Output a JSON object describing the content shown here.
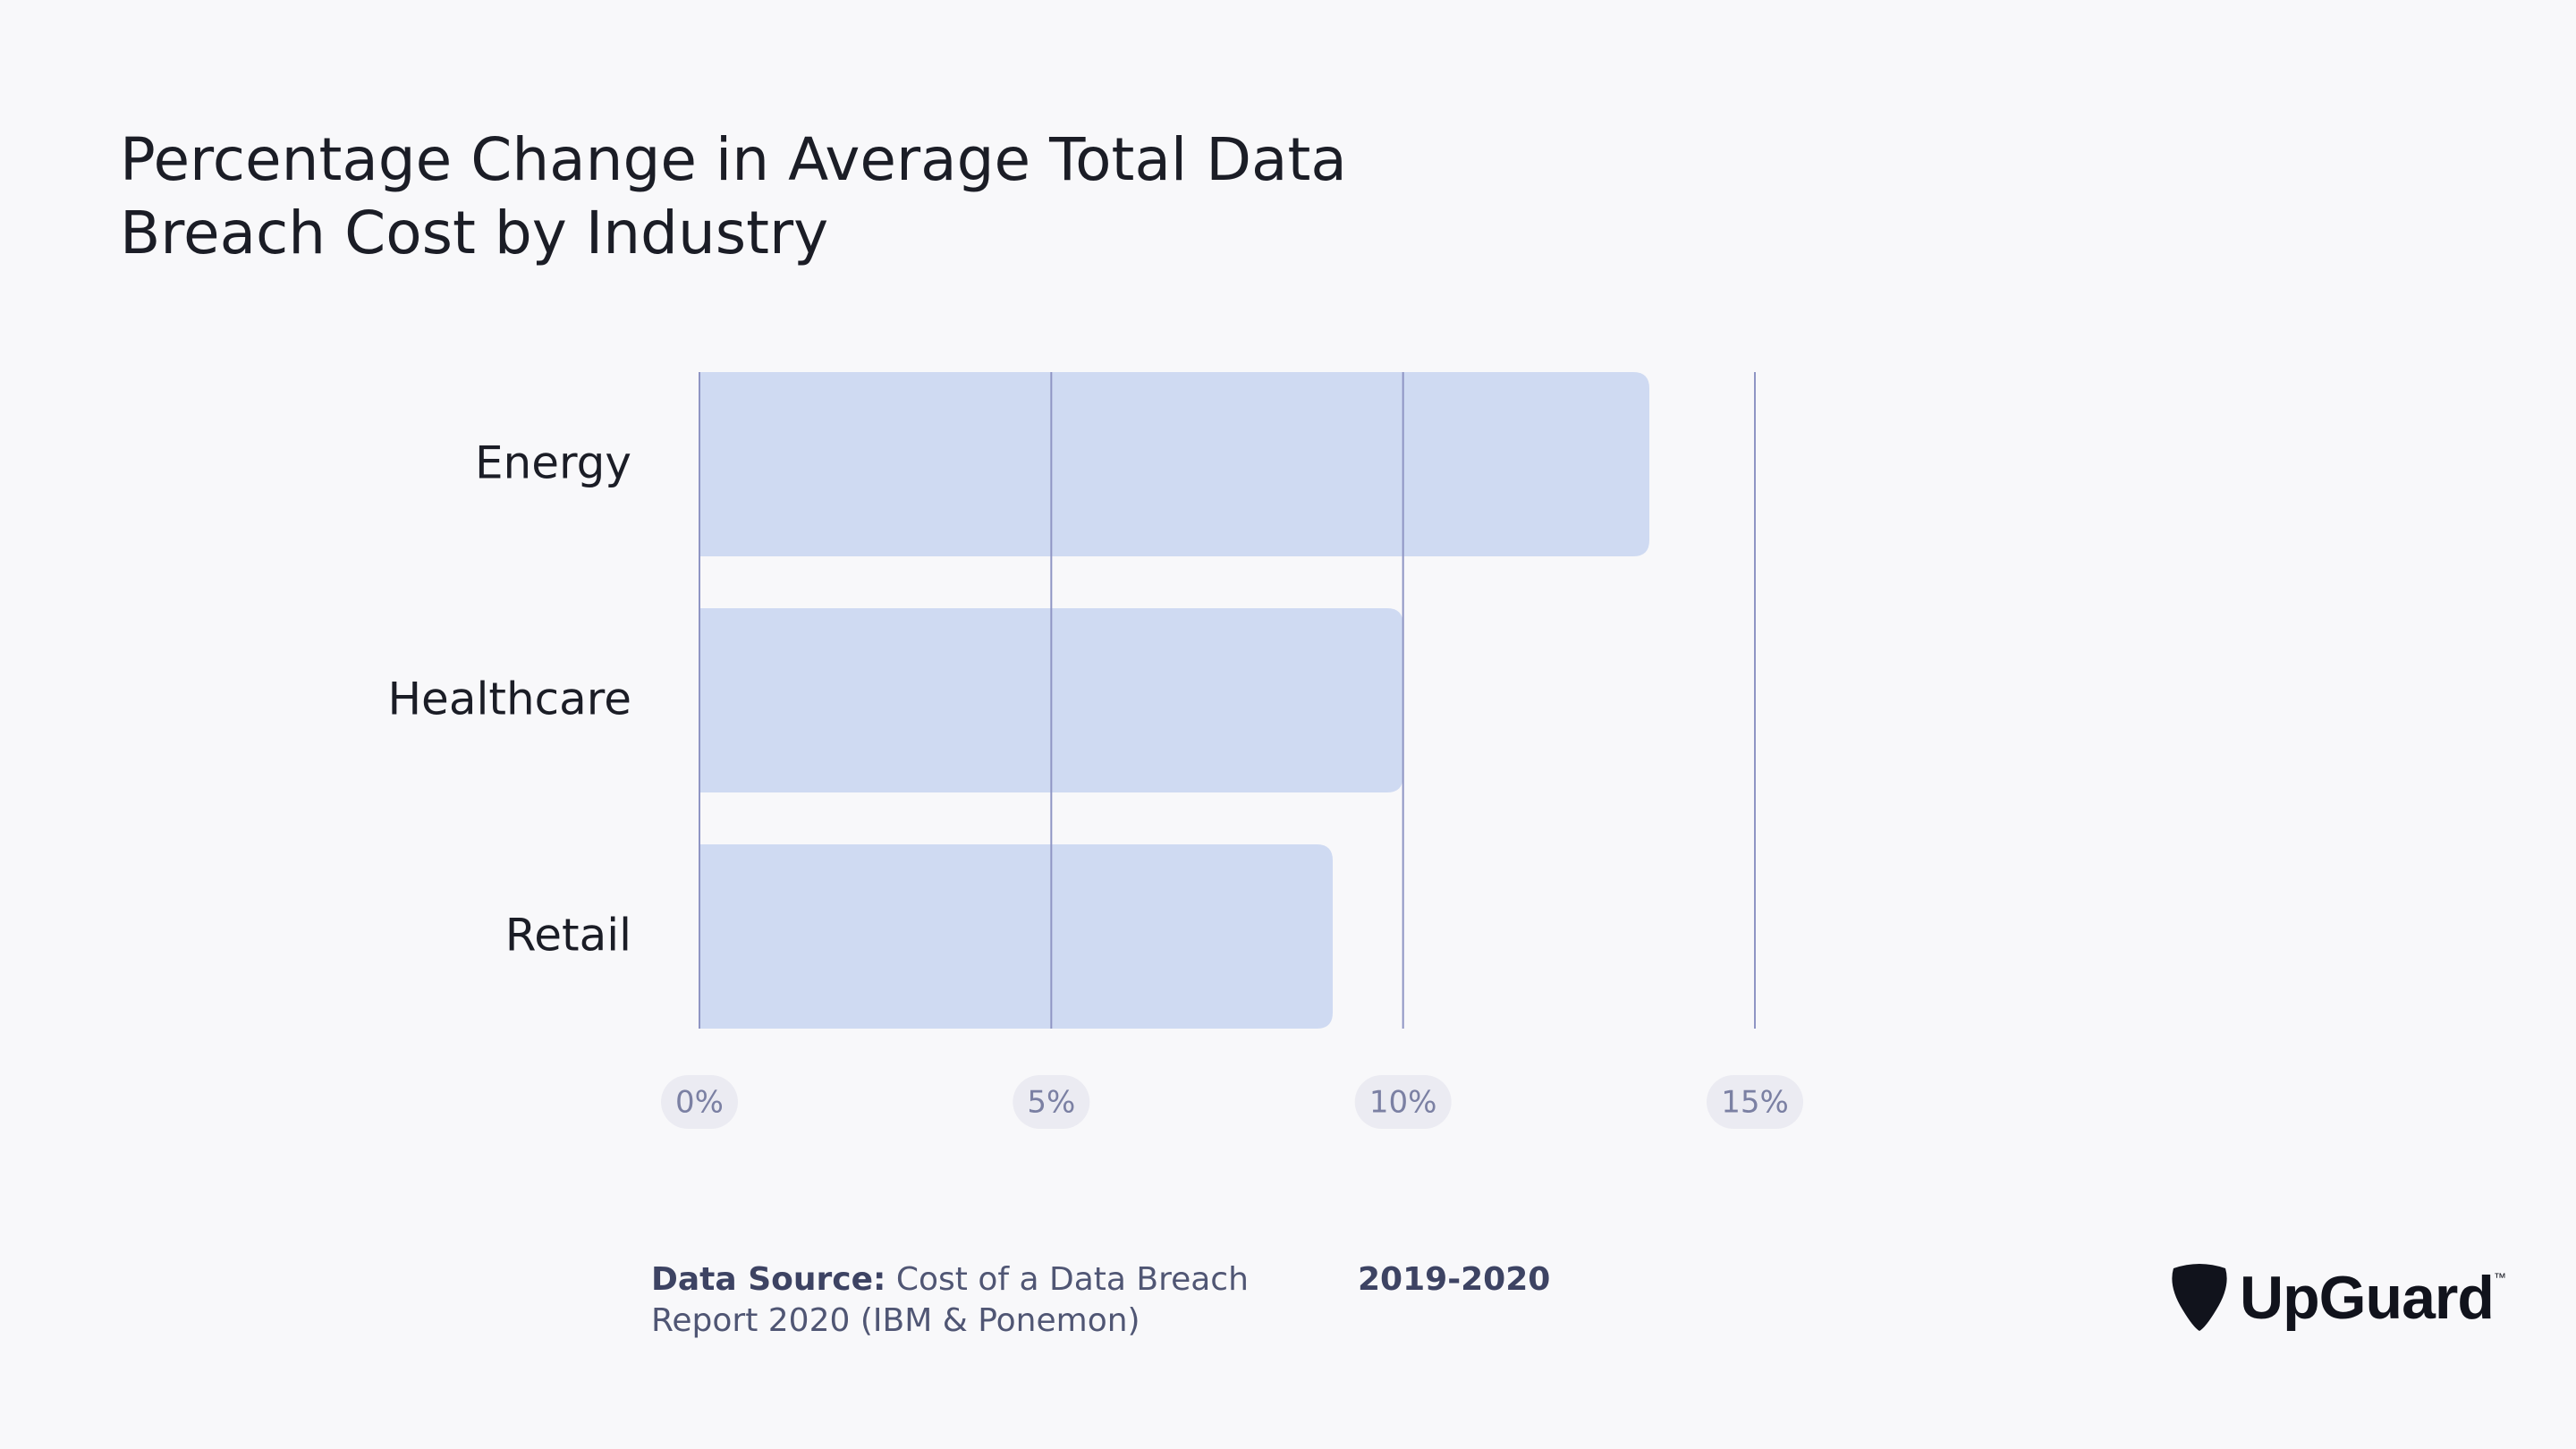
{
  "title_lines": [
    "Percentage Change in Average Total Data",
    "Breach Cost by Industry"
  ],
  "chart_data": {
    "type": "bar",
    "orientation": "horizontal",
    "title": "Percentage Change in Average Total Data Breach Cost by Industry",
    "categories": [
      "Energy",
      "Healthcare",
      "Retail"
    ],
    "values": [
      13.5,
      10.0,
      9.0
    ],
    "xlim": [
      0,
      15
    ],
    "xticks": [
      0,
      5,
      10,
      15
    ],
    "xtick_labels": [
      "0%",
      "5%",
      "10%",
      "15%"
    ],
    "xlabel": "",
    "ylabel": "",
    "grid": true,
    "bar_color": "#cfdaf2",
    "grid_color": "#8f95c4"
  },
  "footer": {
    "source_label": "Data Source:",
    "source_text": "Cost of a Data Breach Report 2020 (IBM & Ponemon)",
    "years": "2019-2020"
  },
  "logo": {
    "text": "UpGuard",
    "tm": "™",
    "icon": "guitar-pick-icon"
  }
}
